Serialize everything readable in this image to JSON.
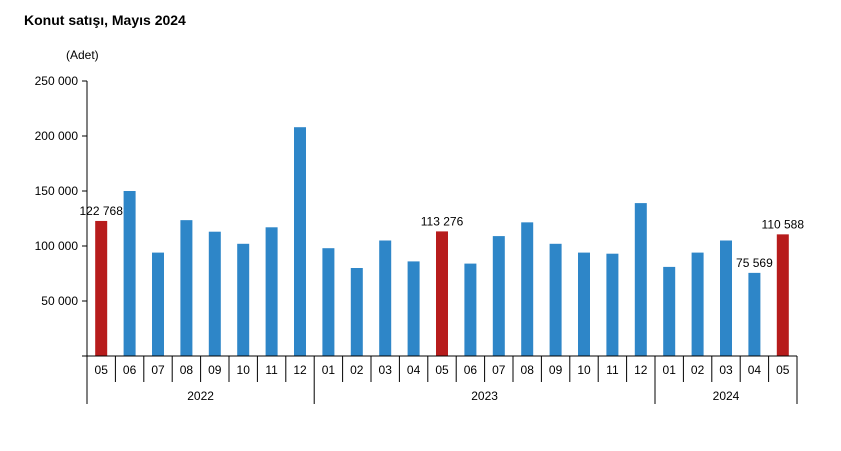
{
  "chart_data": {
    "type": "bar",
    "title": "Konut satışı, Mayıs 2024",
    "ylabel": "(Adet)",
    "xlabel": "",
    "ylim": [
      0,
      250000
    ],
    "yticks": [
      {
        "value": 50000,
        "label": "50 000"
      },
      {
        "value": 100000,
        "label": "100 000"
      },
      {
        "value": 150000,
        "label": "150 000"
      },
      {
        "value": 200000,
        "label": "200 000"
      },
      {
        "value": 250000,
        "label": "250 000"
      }
    ],
    "categories": [
      "05",
      "06",
      "07",
      "08",
      "09",
      "10",
      "11",
      "12",
      "01",
      "02",
      "03",
      "04",
      "05",
      "06",
      "07",
      "08",
      "09",
      "10",
      "11",
      "12",
      "01",
      "02",
      "03",
      "04",
      "05"
    ],
    "values": [
      122768,
      150000,
      94000,
      123500,
      113000,
      102000,
      117000,
      208000,
      98000,
      80000,
      105000,
      86000,
      113276,
      84000,
      109000,
      121500,
      102000,
      94000,
      93000,
      139000,
      81000,
      94000,
      105000,
      75569,
      110588
    ],
    "highlight": [
      true,
      false,
      false,
      false,
      false,
      false,
      false,
      false,
      false,
      false,
      false,
      false,
      true,
      false,
      false,
      false,
      false,
      false,
      false,
      false,
      false,
      false,
      false,
      false,
      true
    ],
    "data_labels": [
      {
        "index": 0,
        "text": "122 768"
      },
      {
        "index": 12,
        "text": "113 276"
      },
      {
        "index": 23,
        "text": "75 569"
      },
      {
        "index": 24,
        "text": "110 588"
      }
    ],
    "year_groups": [
      {
        "label": "2022",
        "start": 0,
        "end": 7
      },
      {
        "label": "2023",
        "start": 8,
        "end": 19
      },
      {
        "label": "2024",
        "start": 20,
        "end": 24
      }
    ],
    "colors": {
      "bar": "#2e86c8",
      "highlight": "#b71c1c",
      "axis": "#000000"
    },
    "grid": false,
    "legend": "none"
  }
}
